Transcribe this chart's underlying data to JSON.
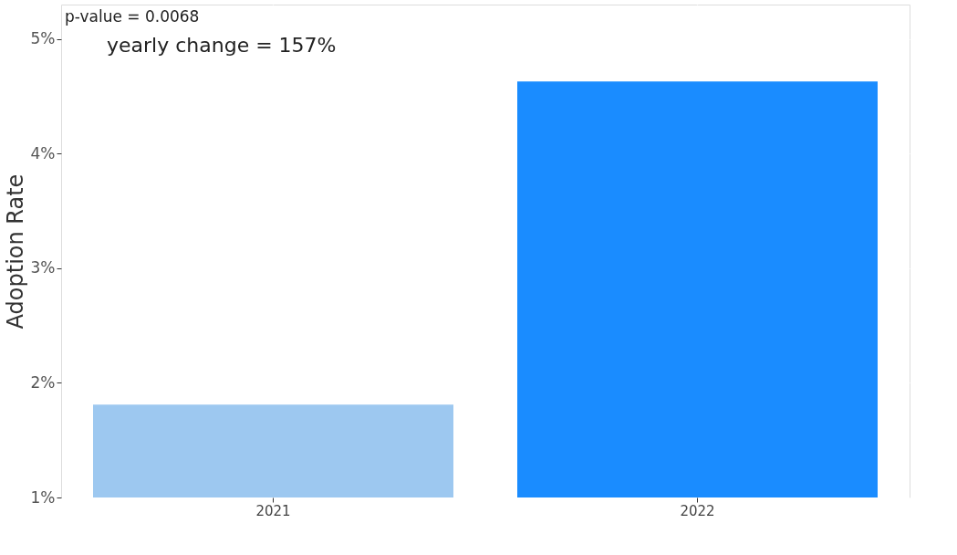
{
  "chart_data": {
    "type": "bar",
    "ylabel": "Adoption Rate",
    "categories": [
      "2021",
      "2022"
    ],
    "values": [
      1.81,
      4.63
    ],
    "colors": [
      "#9dc8f0",
      "#1a8cff"
    ],
    "ylim": [
      1,
      5.3
    ],
    "yticks": [
      {
        "value": 1,
        "label": "1%"
      },
      {
        "value": 2,
        "label": "2%"
      },
      {
        "value": 3,
        "label": "3%"
      },
      {
        "value": 4,
        "label": "4%"
      },
      {
        "value": 5,
        "label": "5%"
      }
    ],
    "grid": true,
    "annotations": [
      "p-value = 0.0068",
      "yearly change = 157%"
    ]
  }
}
